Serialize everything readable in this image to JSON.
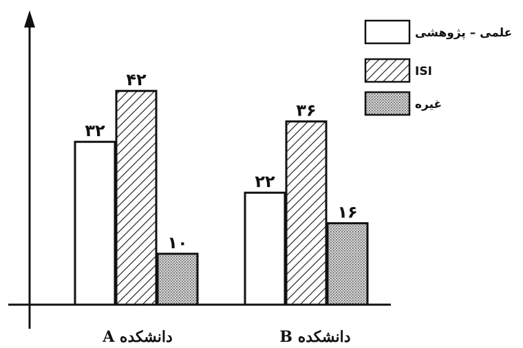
{
  "chart_data": {
    "type": "bar",
    "categories": [
      "دانشکده A",
      "دانشکده B"
    ],
    "series": [
      {
        "name": "علمی – پژوهشی",
        "values": [
          32,
          22
        ],
        "value_labels": [
          "۳۲",
          "۲۲"
        ],
        "pattern": "plain"
      },
      {
        "name": "ISI",
        "values": [
          42,
          36
        ],
        "value_labels": [
          "۴۲",
          "۳۶"
        ],
        "pattern": "hatched"
      },
      {
        "name": "غیره",
        "values": [
          10,
          16
        ],
        "value_labels": [
          "۱۰",
          "۱۶"
        ],
        "pattern": "dotted"
      }
    ],
    "title": "",
    "xlabel": "",
    "ylabel": "",
    "ylim": [
      0,
      50
    ],
    "grid": false,
    "legend_position": "top-right",
    "colors": {
      "stroke": "#111111",
      "plain_fill": "#ffffff",
      "dot_fill": "#9a9a9a",
      "background": "#ffffff"
    }
  }
}
